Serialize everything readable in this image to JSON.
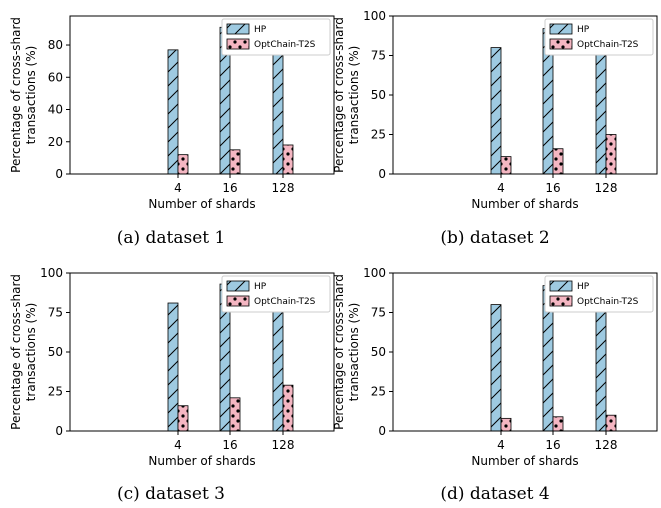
{
  "colors": {
    "hp_fill": "#9ecae1",
    "hp_hatch": "#000000",
    "t2s_fill": "#f4b6c2",
    "t2s_dot": "#000000",
    "axis": "#000000"
  },
  "captions": [
    "(a) dataset 1",
    "(b) dataset 2",
    "(c) dataset 3",
    "(d) dataset 4"
  ],
  "chart_data": [
    {
      "type": "bar",
      "caption": "(a) dataset 1",
      "xlabel": "Number of shards",
      "ylabel": [
        "Percentage of cross-shard",
        "transactions (%)"
      ],
      "categories": [
        "4",
        "16",
        "128"
      ],
      "series": [
        {
          "name": "HP",
          "values": [
            77,
            91,
            95
          ],
          "pattern": "diagonal-hatch"
        },
        {
          "name": "OptChain-T2S",
          "values": [
            12,
            15,
            18
          ],
          "pattern": "dots"
        }
      ],
      "ylim": [
        0,
        98
      ],
      "yticks": [
        0,
        20,
        40,
        60,
        80
      ],
      "legend": "top-right",
      "grid": false
    },
    {
      "type": "bar",
      "caption": "(b) dataset 2",
      "xlabel": "Number of shards",
      "ylabel": [
        "Percentage of cross-shard",
        "transactions (%)"
      ],
      "categories": [
        "4",
        "16",
        "128"
      ],
      "series": [
        {
          "name": "HP",
          "values": [
            80,
            92,
            96
          ],
          "pattern": "diagonal-hatch"
        },
        {
          "name": "OptChain-T2S",
          "values": [
            11,
            16,
            25
          ],
          "pattern": "dots"
        }
      ],
      "ylim": [
        0,
        100
      ],
      "yticks": [
        0,
        25,
        50,
        75,
        100
      ],
      "legend": "top-right",
      "grid": false
    },
    {
      "type": "bar",
      "caption": "(c) dataset 3",
      "xlabel": "Number of shards",
      "ylabel": [
        "Percentage of cross-shard",
        "transactions (%)"
      ],
      "categories": [
        "4",
        "16",
        "128"
      ],
      "series": [
        {
          "name": "HP",
          "values": [
            81,
            93,
            96
          ],
          "pattern": "diagonal-hatch"
        },
        {
          "name": "OptChain-T2S",
          "values": [
            16,
            21,
            29
          ],
          "pattern": "dots"
        }
      ],
      "ylim": [
        0,
        100
      ],
      "yticks": [
        0,
        25,
        50,
        75,
        100
      ],
      "legend": "top-right",
      "grid": false
    },
    {
      "type": "bar",
      "caption": "(d) dataset 4",
      "xlabel": "Number of shards",
      "ylabel": [
        "Percentage of cross-shard",
        "transactions (%)"
      ],
      "categories": [
        "4",
        "16",
        "128"
      ],
      "series": [
        {
          "name": "HP",
          "values": [
            80,
            92,
            96
          ],
          "pattern": "diagonal-hatch"
        },
        {
          "name": "OptChain-T2S",
          "values": [
            8,
            9,
            10
          ],
          "pattern": "dots"
        }
      ],
      "ylim": [
        0,
        100
      ],
      "yticks": [
        0,
        25,
        50,
        75,
        100
      ],
      "legend": "top-right",
      "grid": false
    }
  ]
}
